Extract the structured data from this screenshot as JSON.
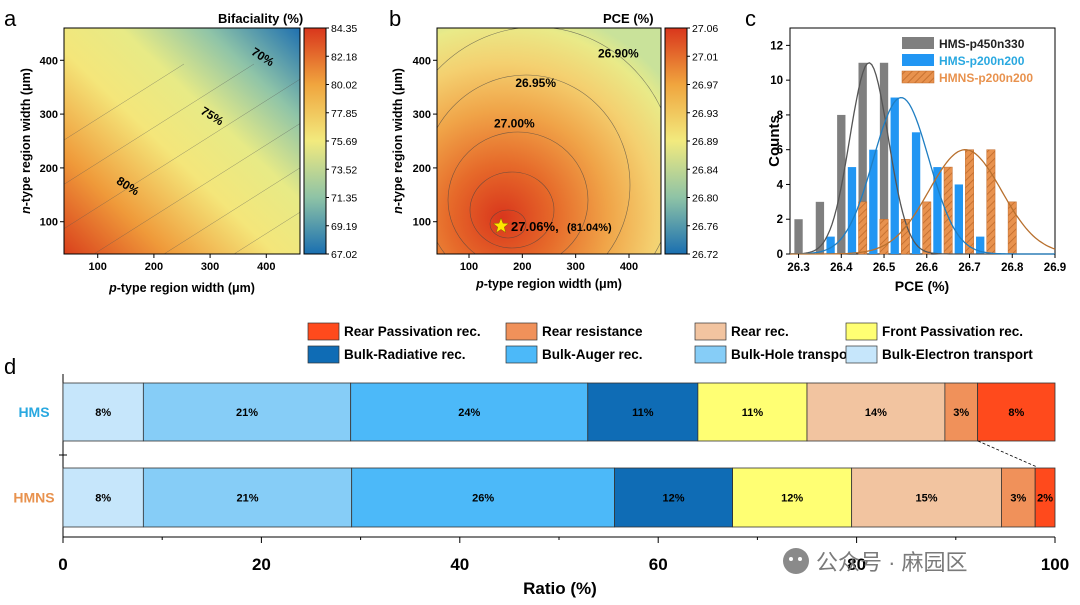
{
  "panels": {
    "a": "a",
    "b": "b",
    "c": "c",
    "d": "d"
  },
  "colors": {
    "hms_gray": "#7f7f7f",
    "hms_blue": "#2196f3",
    "hmns_orange": "#e8924e",
    "hms_label": "#29a8e0",
    "hmns_label": "#e8924e"
  },
  "chart_data": [
    {
      "id": "a",
      "type": "heatmap",
      "title": "Bifaciality (%)",
      "xlabel_italic": "p",
      "xlabel": "-type region width (μm)",
      "ylabel_italic": "n",
      "ylabel": "-type region width (μm)",
      "xlim": [
        40,
        460
      ],
      "ylim": [
        40,
        460
      ],
      "xticks": [
        100,
        200,
        300,
        400
      ],
      "yticks": [
        100,
        200,
        300,
        400
      ],
      "colorbar_range": [
        67.02,
        84.35
      ],
      "colorbar_ticks": [
        "84.35",
        "82.18",
        "80.02",
        "77.85",
        "75.69",
        "73.52",
        "71.35",
        "69.19",
        "67.02"
      ],
      "contours": [
        {
          "label": "70%",
          "x": 390,
          "y": 400
        },
        {
          "label": "75%",
          "x": 300,
          "y": 290
        },
        {
          "label": "80%",
          "x": 150,
          "y": 160
        }
      ]
    },
    {
      "id": "b",
      "type": "heatmap",
      "title": "PCE (%)",
      "xlabel_italic": "p",
      "xlabel": "-type region width (μm)",
      "ylabel_italic": "n",
      "ylabel": "-type region width (μm)",
      "xlim": [
        40,
        460
      ],
      "ylim": [
        40,
        460
      ],
      "xticks": [
        100,
        200,
        300,
        400
      ],
      "yticks": [
        100,
        200,
        300,
        400
      ],
      "colorbar_range": [
        26.72,
        27.06
      ],
      "colorbar_ticks": [
        "27.06",
        "27.01",
        "26.97",
        "26.93",
        "26.89",
        "26.84",
        "26.80",
        "26.76",
        "26.72"
      ],
      "optimum": {
        "x": 160,
        "y": 92,
        "label": "27.06%,",
        "sub": "(81.04%)"
      },
      "contours": [
        {
          "label": "26.90%",
          "x": 380,
          "y": 405
        },
        {
          "label": "26.95%",
          "x": 225,
          "y": 350
        },
        {
          "label": "27.00%",
          "x": 185,
          "y": 275
        }
      ]
    },
    {
      "id": "c",
      "type": "bar",
      "xlabel": "PCE (%)",
      "ylabel": "Counts",
      "xlim": [
        26.28,
        26.9
      ],
      "ylim": [
        0,
        13
      ],
      "xticks": [
        "26.3",
        "26.4",
        "26.5",
        "26.6",
        "26.7",
        "26.8",
        "26.9"
      ],
      "yticks": [
        "0",
        "2",
        "4",
        "6",
        "8",
        "10",
        "12"
      ],
      "bin_width": 0.025,
      "series": [
        {
          "name": "HMS-p450n330",
          "x": [
            26.3,
            26.35,
            26.4,
            26.45,
            26.5,
            26.55
          ],
          "values": [
            2,
            3,
            8,
            11,
            11,
            2
          ]
        },
        {
          "name": "HMS-p200n200",
          "x": [
            26.375,
            26.425,
            26.475,
            26.525,
            26.575,
            26.625,
            26.675,
            26.725
          ],
          "values": [
            1,
            5,
            6,
            9,
            7,
            5,
            4,
            1
          ]
        },
        {
          "name": "HMNS-p200n200",
          "x": [
            26.45,
            26.5,
            26.55,
            26.6,
            26.65,
            26.7,
            26.75,
            26.8
          ],
          "values": [
            3,
            2,
            2,
            3,
            5,
            6,
            6,
            3
          ]
        }
      ],
      "fits": [
        {
          "mean": 26.465,
          "sigma": 0.045,
          "amp": 11
        },
        {
          "mean": 26.54,
          "sigma": 0.065,
          "amp": 9
        },
        {
          "mean": 26.69,
          "sigma": 0.085,
          "amp": 6
        }
      ]
    },
    {
      "id": "d",
      "type": "bar",
      "orientation": "horizontal-stacked",
      "xlabel": "Ratio (%)",
      "xlim": [
        0,
        100
      ],
      "xticks": [
        "0",
        "20",
        "40",
        "60",
        "80",
        "100"
      ],
      "categories": [
        "HMS",
        "HMNS"
      ],
      "legend": [
        {
          "name": "Rear Passivation rec.",
          "color": "#ff4a1c"
        },
        {
          "name": "Rear resistance",
          "color": "#f0915a"
        },
        {
          "name": "Rear rec.",
          "color": "#f2c4a0"
        },
        {
          "name": "Front Passivation rec.",
          "color": "#ffff73"
        },
        {
          "name": "Bulk-Radiative rec.",
          "color": "#0f6cb5"
        },
        {
          "name": "Bulk-Auger rec.",
          "color": "#4cb9f9"
        },
        {
          "name": "Bulk-Hole transport",
          "color": "#86cdf7"
        },
        {
          "name": "Bulk-Electron transport",
          "color": "#c6e6fb"
        }
      ],
      "series": [
        {
          "name": "Bulk-Electron transport",
          "color": "#c6e6fb",
          "values": [
            8.1,
            8.1
          ],
          "labels": [
            "8%",
            "8%"
          ]
        },
        {
          "name": "Bulk-Hole transport",
          "color": "#86cdf7",
          "values": [
            20.9,
            21.0
          ],
          "labels": [
            "21%",
            "21%"
          ]
        },
        {
          "name": "Bulk-Auger rec.",
          "color": "#4cb9f9",
          "values": [
            23.9,
            26.5
          ],
          "labels": [
            "24%",
            "26%"
          ]
        },
        {
          "name": "Bulk-Radiative rec.",
          "color": "#0f6cb5",
          "values": [
            11.1,
            11.9
          ],
          "labels": [
            "11%",
            "12%"
          ]
        },
        {
          "name": "Front Passivation rec.",
          "color": "#ffff73",
          "values": [
            11.0,
            12.0
          ],
          "labels": [
            "11%",
            "12%"
          ]
        },
        {
          "name": "Rear rec.",
          "color": "#f2c4a0",
          "values": [
            13.9,
            15.1
          ],
          "labels": [
            "14%",
            "15%"
          ]
        },
        {
          "name": "Rear resistance",
          "color": "#f0915a",
          "values": [
            3.3,
            3.4
          ],
          "labels": [
            "3%",
            "3%"
          ]
        },
        {
          "name": "Rear Passivation rec.",
          "color": "#ff4a1c",
          "values": [
            7.8,
            2.0
          ],
          "labels": [
            "8%",
            "2%"
          ]
        }
      ]
    }
  ],
  "watermark": "公众号 · 麻园区"
}
